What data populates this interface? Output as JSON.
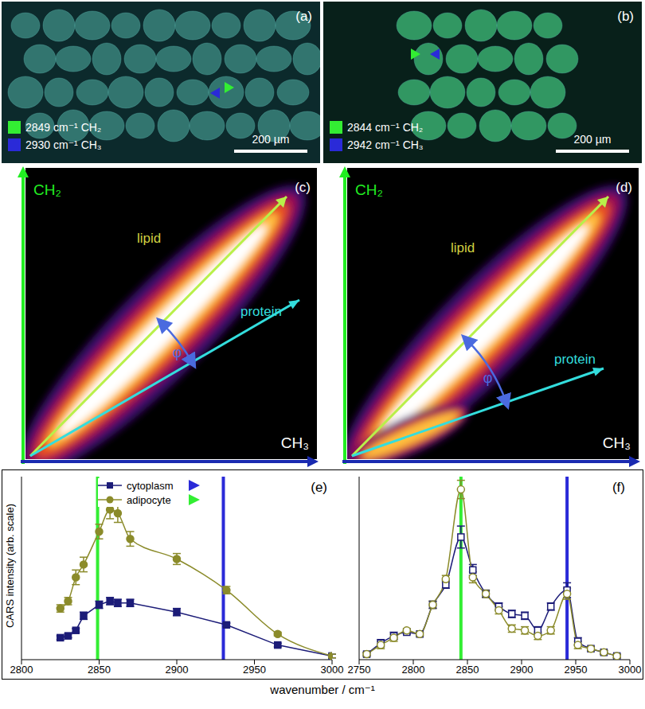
{
  "figure": {
    "images": [
      {
        "letter": "(a)",
        "legend": [
          {
            "label": "2849 cm⁻¹ CH₂",
            "color": "#33ee33"
          },
          {
            "label": "2930 cm⁻¹ CH₃",
            "color": "#2a2ad8"
          }
        ],
        "scale_bar": "200 µm"
      },
      {
        "letter": "(b)",
        "legend": [
          {
            "label": "2844 cm⁻¹ CH₂",
            "color": "#33ee33"
          },
          {
            "label": "2942 cm⁻¹ CH₃",
            "color": "#2a2ad8"
          }
        ],
        "scale_bar": "200 µm"
      }
    ],
    "histograms": [
      {
        "letter": "(c)",
        "y_label": "CH₂",
        "x_label": "CH₃",
        "lipid": "lipid",
        "protein": "protein",
        "angle": "φ"
      },
      {
        "letter": "(d)",
        "y_label": "CH₂",
        "x_label": "CH₃",
        "lipid": "lipid",
        "protein": "protein",
        "angle": "φ"
      }
    ],
    "x_label": "wavenumber / cm⁻¹",
    "y_label": "CARS intensity (arb. scale)"
  },
  "chart_data": [
    {
      "type": "line",
      "title": "(e)",
      "x": [
        2825,
        2830,
        2835,
        2840,
        2850,
        2857,
        2862,
        2870,
        2900,
        2932,
        2965,
        3000
      ],
      "xlim": [
        2800,
        3000
      ],
      "xticks": [
        2800,
        2850,
        2900,
        2950,
        3000
      ],
      "ylim": [
        0,
        1
      ],
      "tick_labels": "x",
      "legend": "top",
      "series": [
        {
          "name": "cytoplasm",
          "color": "#1c1c78",
          "marker": "square",
          "line_style": "solid",
          "values": [
            0.12,
            0.13,
            0.16,
            0.24,
            0.3,
            0.32,
            0.31,
            0.31,
            0.26,
            0.19,
            0.08,
            0.02
          ],
          "errors": [
            0.01,
            0.01,
            0.01,
            0.02,
            0.02,
            0.02,
            0.02,
            0.02,
            0.02,
            0.01,
            0.01,
            0.01
          ]
        },
        {
          "name": "adipocyte",
          "color": "#8b8b2a",
          "marker": "circle",
          "line_style": "smooth",
          "values": [
            0.28,
            0.32,
            0.45,
            0.52,
            0.7,
            0.82,
            0.8,
            0.66,
            0.55,
            0.38,
            0.14,
            0.02
          ],
          "errors": [
            0.02,
            0.02,
            0.04,
            0.04,
            0.04,
            0.05,
            0.05,
            0.04,
            0.03,
            0.02,
            0.01,
            0.01
          ]
        }
      ],
      "reference_lines": [
        {
          "x": 2849,
          "color": "#33ee33"
        },
        {
          "x": 2930,
          "color": "#2a2ad8"
        }
      ]
    },
    {
      "type": "line",
      "title": "(f)",
      "x": [
        2757,
        2770,
        2782,
        2794,
        2806,
        2818,
        2830,
        2844,
        2855,
        2867,
        2879,
        2891,
        2903,
        2915,
        2927,
        2942,
        2952,
        2964,
        2976,
        2988
      ],
      "xlim": [
        2750,
        3000
      ],
      "xticks": [
        2750,
        2800,
        2850,
        2900,
        2950,
        3000
      ],
      "ylim": [
        0,
        1
      ],
      "tick_labels": "x",
      "series": [
        {
          "name": "cytoplasm",
          "color": "#1c1c78",
          "marker": "square_open",
          "line_style": "smooth",
          "values": [
            0.03,
            0.09,
            0.13,
            0.15,
            0.14,
            0.3,
            0.41,
            0.67,
            0.49,
            0.36,
            0.29,
            0.25,
            0.24,
            0.16,
            0.29,
            0.38,
            0.1,
            0.06,
            0.04,
            0.02
          ],
          "errors": [
            0.01,
            0.02,
            0.02,
            0.01,
            0.01,
            0.02,
            0.02,
            0.06,
            0.03,
            0.02,
            0.02,
            0.02,
            0.02,
            0.02,
            0.02,
            0.04,
            0.02,
            0.01,
            0.01,
            0.01
          ]
        },
        {
          "name": "adipocyte",
          "color": "#8b8b2a",
          "marker": "circle_open",
          "line_style": "smooth",
          "values": [
            0.03,
            0.08,
            0.12,
            0.16,
            0.14,
            0.3,
            0.44,
            0.93,
            0.45,
            0.36,
            0.27,
            0.17,
            0.16,
            0.13,
            0.16,
            0.36,
            0.08,
            0.06,
            0.04,
            0.02
          ],
          "errors": [
            0.01,
            0.02,
            0.02,
            0.01,
            0.01,
            0.02,
            0.02,
            0.05,
            0.03,
            0.02,
            0.02,
            0.02,
            0.02,
            0.02,
            0.02,
            0.03,
            0.02,
            0.01,
            0.01,
            0.01
          ]
        }
      ],
      "reference_lines": [
        {
          "x": 2844,
          "color": "#33ee33"
        },
        {
          "x": 2942,
          "color": "#2a2ad8"
        }
      ]
    }
  ]
}
